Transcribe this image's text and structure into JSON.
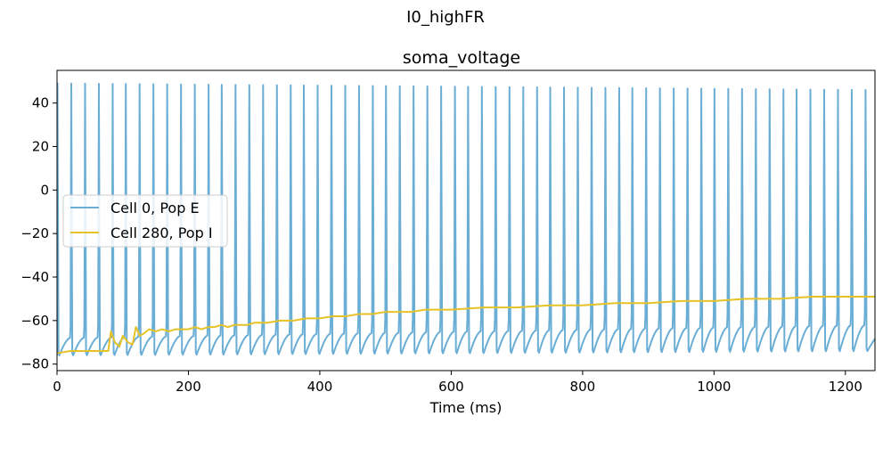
{
  "suptitle": "I0_highFR",
  "chart_data": {
    "type": "line",
    "title": "soma_voltage",
    "xlabel": "Time (ms)",
    "ylabel": "",
    "xlim": [
      0,
      1245
    ],
    "ylim": [
      -83,
      55
    ],
    "xticks": [
      0,
      200,
      400,
      600,
      800,
      1000,
      1200
    ],
    "yticks": [
      40,
      20,
      0,
      -20,
      -40,
      -60,
      -80
    ],
    "xtick_labels": [
      "0",
      "200",
      "400",
      "600",
      "800",
      "1000",
      "1200"
    ],
    "ytick_labels": [
      "40",
      "20",
      "0",
      "−20",
      "−40",
      "−60",
      "−80"
    ],
    "legend_position": "center-left",
    "grid": false,
    "series": [
      {
        "name": "Cell 0, Pop E",
        "color": "#6aaed6",
        "kind": "spiking",
        "spike_times_ms": [
          0,
          21,
          42,
          63,
          84,
          104,
          125,
          146,
          167,
          188,
          209,
          230,
          250,
          271,
          292,
          313,
          334,
          355,
          375,
          396,
          417,
          438,
          459,
          480,
          500,
          521,
          542,
          563,
          584,
          605,
          625,
          646,
          667,
          688,
          709,
          730,
          750,
          771,
          792,
          813,
          834,
          855,
          875,
          896,
          917,
          938,
          959,
          980,
          1000,
          1021,
          1042,
          1063,
          1084,
          1105,
          1125,
          1146,
          1167,
          1188,
          1209,
          1230
        ],
        "peak_mV_start": 49,
        "peak_mV_end": 46,
        "trough_mV_start": -76,
        "trough_mV_end": -74,
        "threshold_mV_start": -68,
        "threshold_mV_end": -62,
        "rest_mV": -76
      },
      {
        "name": "Cell 280, Pop I",
        "color": "#e6c229",
        "kind": "trace",
        "x": [
          0,
          20,
          40,
          60,
          78,
          82,
          88,
          95,
          100,
          108,
          115,
          120,
          126,
          132,
          140,
          150,
          160,
          170,
          180,
          190,
          200,
          210,
          220,
          230,
          240,
          250,
          260,
          270,
          280,
          290,
          300,
          320,
          340,
          360,
          380,
          400,
          420,
          440,
          460,
          480,
          500,
          520,
          540,
          560,
          580,
          600,
          650,
          700,
          750,
          800,
          850,
          900,
          950,
          1000,
          1050,
          1100,
          1150,
          1200,
          1245
        ],
        "y": [
          -75,
          -74,
          -74,
          -74,
          -74,
          -65,
          -70,
          -72,
          -67,
          -70,
          -71,
          -63,
          -67,
          -66,
          -64,
          -65,
          -64,
          -65,
          -64,
          -64,
          -64,
          -63,
          -64,
          -63,
          -63,
          -62,
          -63,
          -62,
          -62,
          -62,
          -61,
          -61,
          -60,
          -60,
          -59,
          -59,
          -58,
          -58,
          -57,
          -57,
          -56,
          -56,
          -56,
          -55,
          -55,
          -55,
          -54,
          -54,
          -53,
          -53,
          -52,
          -52,
          -51,
          -51,
          -50,
          -50,
          -49,
          -49,
          -49
        ]
      }
    ]
  }
}
